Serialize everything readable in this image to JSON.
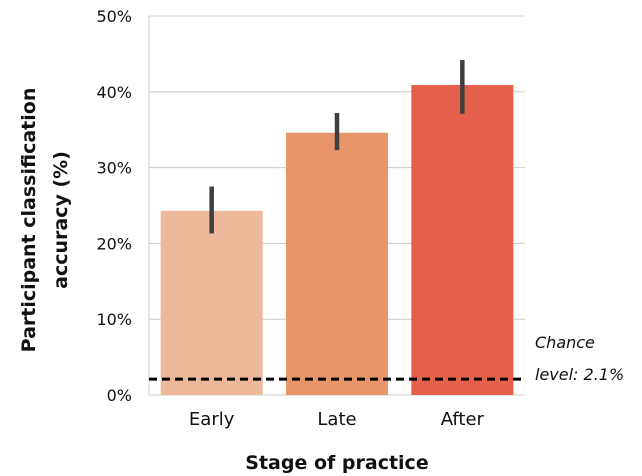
{
  "chart_data": {
    "type": "bar",
    "categories": [
      "Early",
      "Late",
      "After"
    ],
    "values": [
      24.3,
      34.6,
      40.9
    ],
    "error_low": [
      21.3,
      32.3,
      37.1
    ],
    "error_high": [
      27.5,
      37.2,
      44.2
    ],
    "colors": [
      "#eeb89a",
      "#e8956b",
      "#e4604a"
    ],
    "xlabel": "Stage of practice",
    "ylabel_lines": [
      "Participant classification",
      "accuracy (%)"
    ],
    "ylim": [
      0,
      50
    ],
    "yticks": [
      0,
      10,
      20,
      30,
      40,
      50
    ],
    "ytick_labels": [
      "0%",
      "10%",
      "20%",
      "30%",
      "40%",
      "50%"
    ],
    "grid": "horizontal",
    "reference_line": {
      "value": 2.1,
      "style": "dashed",
      "color": "#000000",
      "label_lines": [
        "Chance",
        "level: 2.1%"
      ]
    }
  }
}
